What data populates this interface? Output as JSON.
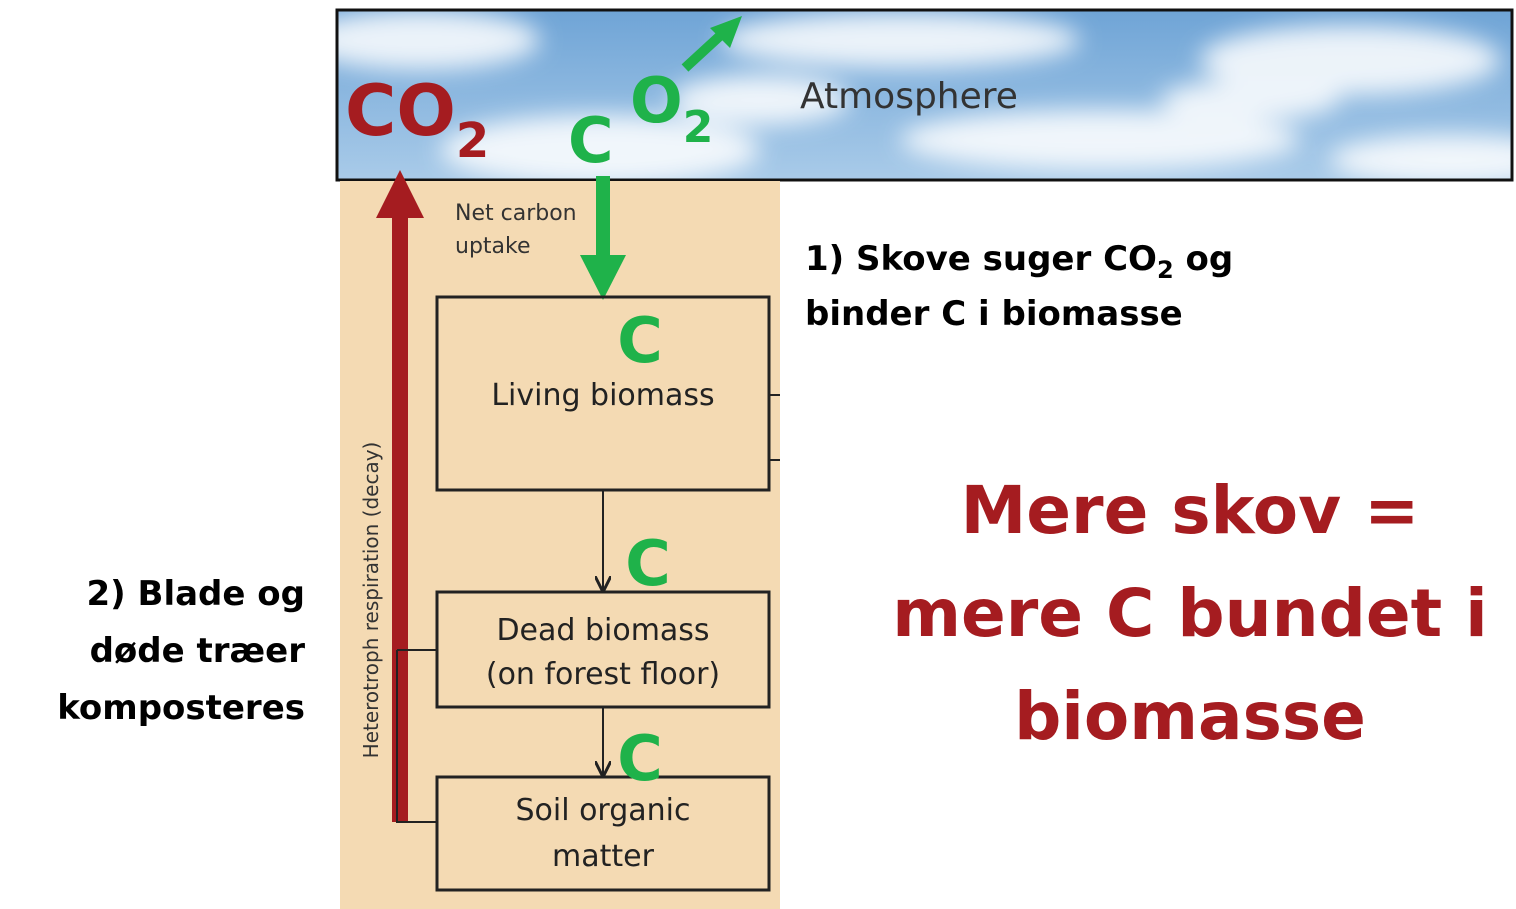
{
  "atmosphere": {
    "label": "Atmosphere",
    "co2": {
      "text": "CO",
      "sub": "2"
    },
    "o2": {
      "text": "O",
      "sub": "2"
    },
    "c": "C"
  },
  "net_uptake": {
    "lines": [
      "Net carbon",
      "uptake"
    ]
  },
  "boxes": [
    {
      "lines": [
        "Living biomass"
      ]
    },
    {
      "lines": [
        "Dead biomass",
        "(on forest floor)"
      ]
    },
    {
      "lines": [
        "Soil organic",
        "matter"
      ]
    }
  ],
  "carbon_labels": [
    "C",
    "C",
    "C"
  ],
  "respiration_label": "Heterotroph respiration (decay)",
  "note_1": {
    "lines": [
      [
        "1) Skove suger CO",
        "2",
        " og"
      ],
      [
        "binder C i biomasse"
      ]
    ]
  },
  "note_2": {
    "lines": [
      "2) Blade og",
      "døde træer",
      "komposteres"
    ]
  },
  "headline": {
    "lines": [
      "Mere skov =",
      "mere C bundet i",
      "biomasse"
    ]
  }
}
